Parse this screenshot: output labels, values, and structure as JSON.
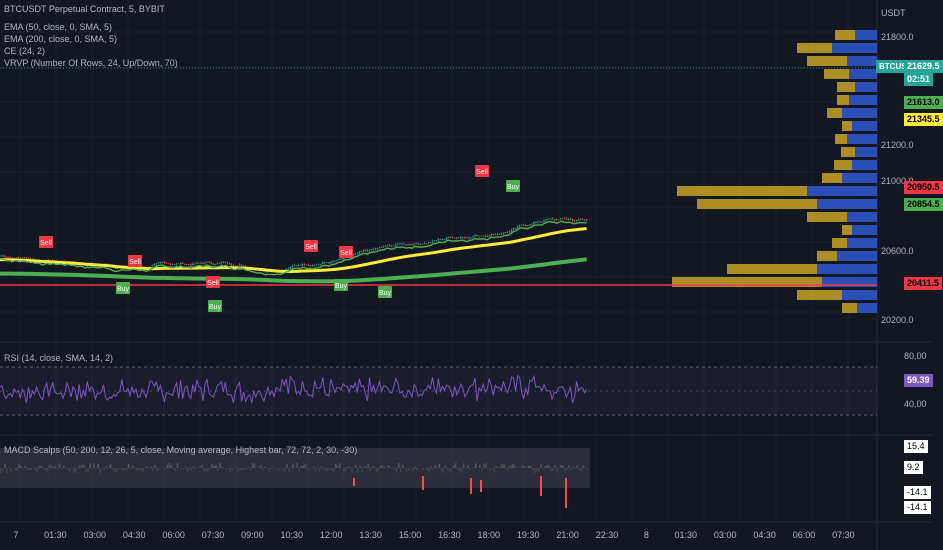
{
  "header": {
    "symbol_line": "BTCUSDT Perpetual Contract, 5, BYBIT",
    "currency": "USDT"
  },
  "indicators": [
    "EMA (50, close, 0, SMA, 5)",
    "EMA (200, close, 0, SMA, 5)",
    "CE (24, 2)",
    "VRVP (Number Of Rows, 24, Up/Down, 70)"
  ],
  "price_axis": {
    "ticks": [
      "21800.0",
      "21200.0",
      "21000.0",
      "20600.0",
      "20200.0"
    ],
    "tags": [
      {
        "label": "BTCUSDT",
        "value": "21629.5",
        "color": "#26a69a"
      },
      {
        "label": "",
        "value": "02:51",
        "color": "#26a69a"
      },
      {
        "label": "",
        "value": "21613.0",
        "color": "#4caf50"
      },
      {
        "label": "",
        "value": "21345.5",
        "color": "#ffeb3b"
      },
      {
        "label": "",
        "value": "20950.5",
        "color": "#f23645"
      },
      {
        "label": "",
        "value": "20854.5",
        "color": "#4caf50"
      },
      {
        "label": "",
        "value": "20411.5",
        "color": "#f23645"
      }
    ]
  },
  "signals": {
    "sell": "Sell",
    "buy": "Buy"
  },
  "rsi": {
    "legend": "RSI (14, close, SMA, 14, 2)",
    "ticks": [
      "80.00",
      "40.00"
    ],
    "value": "59.39",
    "color": "#7e57c2"
  },
  "macd": {
    "legend": "MACD Scalps (50, 200, 12, 26, 5, close, Moving average, Highest bar, 72, 72, 2, 30, -30)",
    "values": [
      "15.4",
      "9.2",
      "-14.1",
      "-14.1"
    ]
  },
  "time_axis": [
    "7",
    "01:30",
    "03:00",
    "04:30",
    "06:00",
    "07:30",
    "09:00",
    "10:30",
    "12:00",
    "13:30",
    "15:00",
    "16:30",
    "18:00",
    "19:30",
    "21:00",
    "22:30",
    "8",
    "01:30",
    "03:00",
    "04:30",
    "06:00",
    "07:30"
  ],
  "colors": {
    "background": "#131722",
    "up": "#26a69a",
    "down": "#ef5350",
    "ema50": "#ffeb3b",
    "ema200": "#4caf50",
    "vp_up": "#c9a227",
    "vp_down": "#2f55c8",
    "hline": "#f23645"
  }
}
